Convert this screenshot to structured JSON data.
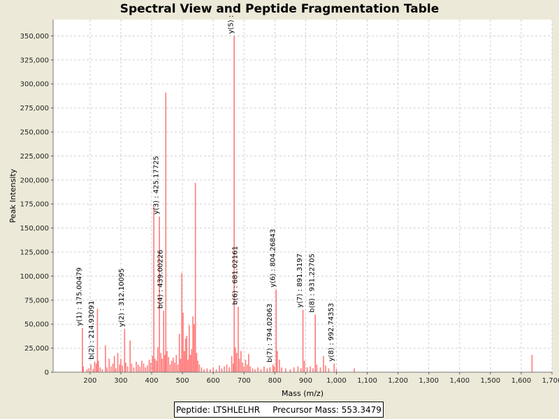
{
  "window": {
    "background": "#ece9d8"
  },
  "info": {
    "peptide_text": "Peptide: LTSHLELHR",
    "precursor_text": "Precursor Mass: 553.3479"
  },
  "colors": {
    "peak": "#ff7a7a",
    "grid": "#d0d0d0",
    "plot_bg": "#ffffff"
  },
  "chart_data": {
    "type": "bar",
    "title": "Spectral View and Peptide Fragmentation Table",
    "xlabel": "Mass (m/z)",
    "ylabel": "Peak Intensity",
    "xlim": [
      80,
      1700
    ],
    "ylim": [
      0,
      367000
    ],
    "grid": true,
    "xticks": [
      200,
      300,
      400,
      500,
      600,
      700,
      800,
      900,
      1000,
      1100,
      1200,
      1300,
      1400,
      1500,
      1600,
      1700
    ],
    "xtick_labels": [
      "200",
      "300",
      "400",
      "500",
      "600",
      "700",
      "800",
      "900",
      "1,000",
      "1,100",
      "1,200",
      "1,300",
      "1,400",
      "1,500",
      "1,600",
      "1,700"
    ],
    "yticks": [
      0,
      25000,
      50000,
      75000,
      100000,
      125000,
      150000,
      175000,
      200000,
      225000,
      250000,
      275000,
      300000,
      325000,
      350000
    ],
    "ytick_labels": [
      "0",
      "25,000",
      "50,000",
      "75,000",
      "100,000",
      "125,000",
      "150,000",
      "175,000",
      "200,000",
      "225,000",
      "250,000",
      "275,000",
      "300,000",
      "325,000",
      "350,000"
    ],
    "peaks": [
      {
        "x": 175.0,
        "y": 46000
      },
      {
        "x": 178,
        "y": 6000
      },
      {
        "x": 190,
        "y": 3000
      },
      {
        "x": 196,
        "y": 4000
      },
      {
        "x": 203,
        "y": 8000
      },
      {
        "x": 210,
        "y": 3500
      },
      {
        "x": 214.9,
        "y": 11000
      },
      {
        "x": 220,
        "y": 9000
      },
      {
        "x": 224,
        "y": 66000
      },
      {
        "x": 227,
        "y": 12000
      },
      {
        "x": 233,
        "y": 5000
      },
      {
        "x": 240,
        "y": 3000
      },
      {
        "x": 250,
        "y": 28000
      },
      {
        "x": 255,
        "y": 5000
      },
      {
        "x": 262,
        "y": 14000
      },
      {
        "x": 268,
        "y": 6000
      },
      {
        "x": 274,
        "y": 9000
      },
      {
        "x": 279,
        "y": 17000
      },
      {
        "x": 284,
        "y": 4000
      },
      {
        "x": 290,
        "y": 20000
      },
      {
        "x": 296,
        "y": 8000
      },
      {
        "x": 300,
        "y": 14000
      },
      {
        "x": 305,
        "y": 7000
      },
      {
        "x": 312.1,
        "y": 45000
      },
      {
        "x": 316,
        "y": 10000
      },
      {
        "x": 322,
        "y": 6000
      },
      {
        "x": 330,
        "y": 33000
      },
      {
        "x": 335,
        "y": 9000
      },
      {
        "x": 342,
        "y": 5000
      },
      {
        "x": 350,
        "y": 11000
      },
      {
        "x": 356,
        "y": 8000
      },
      {
        "x": 362,
        "y": 6000
      },
      {
        "x": 368,
        "y": 12000
      },
      {
        "x": 374,
        "y": 9000
      },
      {
        "x": 380,
        "y": 5000
      },
      {
        "x": 386,
        "y": 7000
      },
      {
        "x": 392,
        "y": 13000
      },
      {
        "x": 397,
        "y": 10000
      },
      {
        "x": 403,
        "y": 17000
      },
      {
        "x": 407,
        "y": 172000
      },
      {
        "x": 411,
        "y": 14000
      },
      {
        "x": 416,
        "y": 12000
      },
      {
        "x": 420,
        "y": 26000
      },
      {
        "x": 425.2,
        "y": 162000
      },
      {
        "x": 430,
        "y": 20000
      },
      {
        "x": 434,
        "y": 14000
      },
      {
        "x": 439.0,
        "y": 64000
      },
      {
        "x": 443,
        "y": 18000
      },
      {
        "x": 446,
        "y": 291000
      },
      {
        "x": 450,
        "y": 22000
      },
      {
        "x": 455,
        "y": 16000
      },
      {
        "x": 460,
        "y": 8000
      },
      {
        "x": 465,
        "y": 12000
      },
      {
        "x": 470,
        "y": 15000
      },
      {
        "x": 475,
        "y": 10000
      },
      {
        "x": 480,
        "y": 18000
      },
      {
        "x": 485,
        "y": 8000
      },
      {
        "x": 490,
        "y": 40000
      },
      {
        "x": 494,
        "y": 14000
      },
      {
        "x": 498,
        "y": 103000
      },
      {
        "x": 502,
        "y": 62000
      },
      {
        "x": 506,
        "y": 22000
      },
      {
        "x": 510,
        "y": 35000
      },
      {
        "x": 514,
        "y": 38000
      },
      {
        "x": 518,
        "y": 13000
      },
      {
        "x": 522,
        "y": 49000
      },
      {
        "x": 526,
        "y": 18000
      },
      {
        "x": 530,
        "y": 24000
      },
      {
        "x": 534,
        "y": 58000
      },
      {
        "x": 538,
        "y": 50000
      },
      {
        "x": 542,
        "y": 197000
      },
      {
        "x": 546,
        "y": 20000
      },
      {
        "x": 550,
        "y": 12000
      },
      {
        "x": 555,
        "y": 8000
      },
      {
        "x": 562,
        "y": 5000
      },
      {
        "x": 570,
        "y": 3000
      },
      {
        "x": 580,
        "y": 4000
      },
      {
        "x": 590,
        "y": 3000
      },
      {
        "x": 600,
        "y": 5000
      },
      {
        "x": 610,
        "y": 3000
      },
      {
        "x": 620,
        "y": 7000
      },
      {
        "x": 628,
        "y": 4000
      },
      {
        "x": 636,
        "y": 6000
      },
      {
        "x": 644,
        "y": 8000
      },
      {
        "x": 652,
        "y": 5000
      },
      {
        "x": 660,
        "y": 17000
      },
      {
        "x": 665,
        "y": 9000
      },
      {
        "x": 668,
        "y": 350000
      },
      {
        "x": 672,
        "y": 26000
      },
      {
        "x": 676,
        "y": 20000
      },
      {
        "x": 681.0,
        "y": 68000
      },
      {
        "x": 685,
        "y": 14000
      },
      {
        "x": 690,
        "y": 22000
      },
      {
        "x": 695,
        "y": 10000
      },
      {
        "x": 700,
        "y": 6000
      },
      {
        "x": 705,
        "y": 13000
      },
      {
        "x": 710,
        "y": 8000
      },
      {
        "x": 715,
        "y": 19000
      },
      {
        "x": 720,
        "y": 6000
      },
      {
        "x": 728,
        "y": 4000
      },
      {
        "x": 736,
        "y": 3000
      },
      {
        "x": 745,
        "y": 5000
      },
      {
        "x": 755,
        "y": 3000
      },
      {
        "x": 765,
        "y": 6000
      },
      {
        "x": 775,
        "y": 4000
      },
      {
        "x": 784,
        "y": 5000
      },
      {
        "x": 794.0,
        "y": 8000
      },
      {
        "x": 798,
        "y": 6000
      },
      {
        "x": 804.3,
        "y": 86000
      },
      {
        "x": 808,
        "y": 22000
      },
      {
        "x": 815,
        "y": 13000
      },
      {
        "x": 822,
        "y": 5000
      },
      {
        "x": 835,
        "y": 4000
      },
      {
        "x": 850,
        "y": 3000
      },
      {
        "x": 862,
        "y": 5000
      },
      {
        "x": 875,
        "y": 6000
      },
      {
        "x": 885,
        "y": 4000
      },
      {
        "x": 891.3,
        "y": 65000
      },
      {
        "x": 896,
        "y": 12000
      },
      {
        "x": 905,
        "y": 5000
      },
      {
        "x": 915,
        "y": 6000
      },
      {
        "x": 924,
        "y": 4000
      },
      {
        "x": 931.2,
        "y": 60000
      },
      {
        "x": 936,
        "y": 8000
      },
      {
        "x": 948,
        "y": 5000
      },
      {
        "x": 958,
        "y": 17000
      },
      {
        "x": 965,
        "y": 7000
      },
      {
        "x": 975,
        "y": 4000
      },
      {
        "x": 992.7,
        "y": 9000
      },
      {
        "x": 1000,
        "y": 3000
      },
      {
        "x": 1058,
        "y": 4000
      },
      {
        "x": 1635,
        "y": 18000
      }
    ],
    "annotations": [
      {
        "x": 175.0,
        "y": 46000,
        "text": "y(1) : 175.00479"
      },
      {
        "x": 214.9,
        "y": 11000,
        "text": "b(2) : 214.93091"
      },
      {
        "x": 312.1,
        "y": 45000,
        "text": "y(2) : 312.10095"
      },
      {
        "x": 425.2,
        "y": 162000,
        "text": "y(3) : 425.17725"
      },
      {
        "x": 439.0,
        "y": 64000,
        "text": "b(4) : 439.00226"
      },
      {
        "x": 668,
        "y": 350000,
        "text": "y(5) :"
      },
      {
        "x": 681.0,
        "y": 68000,
        "text": "b(6) : 681.02161"
      },
      {
        "x": 794.0,
        "y": 8000,
        "text": "b(7) : 794.02063"
      },
      {
        "x": 804.3,
        "y": 86000,
        "text": "y(6) : 804.26843"
      },
      {
        "x": 891.3,
        "y": 65000,
        "text": "y(7) : 891.3197"
      },
      {
        "x": 931.2,
        "y": 60000,
        "text": "b(8) : 931.22705"
      },
      {
        "x": 992.7,
        "y": 9000,
        "text": "y(8) : 992.74353"
      }
    ]
  }
}
